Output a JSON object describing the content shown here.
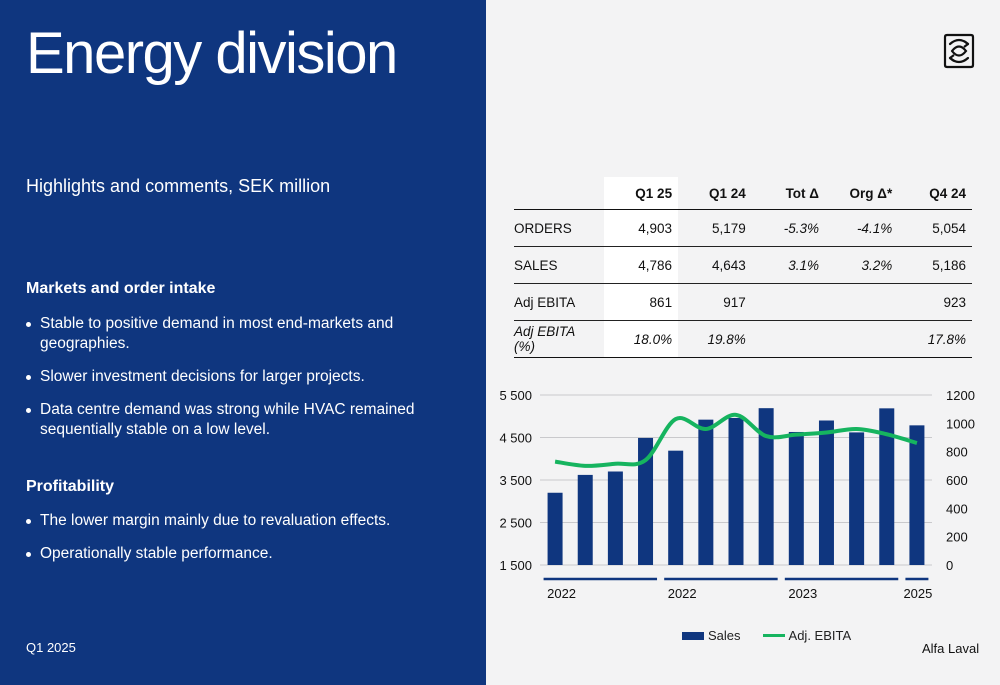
{
  "left": {
    "title": "Energy division",
    "subtitle": "Highlights and comments, SEK million",
    "sections": [
      {
        "heading": "Markets and order intake",
        "bullets": [
          "Stable to positive demand in most end-markets and geographies.",
          "Slower investment decisions for larger projects.",
          "Data centre demand was strong while HVAC remained sequentially stable on a low level."
        ]
      },
      {
        "heading": "Profitability",
        "bullets": [
          "The lower margin mainly due to revaluation effects.",
          "Operationally stable performance."
        ]
      }
    ],
    "footer": "Q1 2025"
  },
  "logo_icon": "alfa-laval-logo-icon",
  "table": {
    "headers": [
      "",
      "Q1 25",
      "Q1 24",
      "Tot Δ",
      "Org Δ*",
      "Q4 24"
    ],
    "rows": [
      {
        "label": "ORDERS",
        "cells": [
          "4,903",
          "5,179",
          "-5.3%",
          "-4.1%",
          "5,054"
        ]
      },
      {
        "label": "SALES",
        "cells": [
          "4,786",
          "4,643",
          "3.1%",
          "3.2%",
          "5,186"
        ]
      },
      {
        "label": "Adj EBITA",
        "cells": [
          "861",
          "917",
          "",
          "",
          "923"
        ]
      },
      {
        "label": "Adj EBITA (%)",
        "cells": [
          "18.0%",
          "19.8%",
          "",
          "",
          "17.8%"
        ]
      }
    ]
  },
  "chart_data": {
    "type": "bar",
    "series": [
      {
        "name": "Sales",
        "type": "bar",
        "axis": "left",
        "values": [
          3200,
          3620,
          3700,
          4490,
          4190,
          4920,
          4960,
          5190,
          4630,
          4900,
          4620,
          5186,
          4786
        ]
      },
      {
        "name": "Adj. EBITA",
        "type": "line",
        "axis": "right",
        "color": "#16b45f",
        "values": [
          730,
          700,
          715,
          740,
          1030,
          960,
          1060,
          910,
          920,
          935,
          960,
          923,
          861
        ]
      }
    ],
    "left_axis": {
      "min": 1500,
      "max": 5500,
      "ticks": [
        "5 500",
        "4 500",
        "3 500",
        "2 500",
        "1 500"
      ]
    },
    "right_axis": {
      "min": 0,
      "max": 1200,
      "ticks": [
        "1200",
        "1000",
        "800",
        "600",
        "400",
        "200",
        "0"
      ]
    },
    "year_labels": [
      "2022",
      "2022",
      "2023",
      "2025"
    ],
    "bar_color": "#0f367f",
    "legend_position": "bottom",
    "grid": true
  },
  "legend": {
    "sales": "Sales",
    "ebita": "Adj. EBITA"
  },
  "footer_right": "Alfa Laval"
}
